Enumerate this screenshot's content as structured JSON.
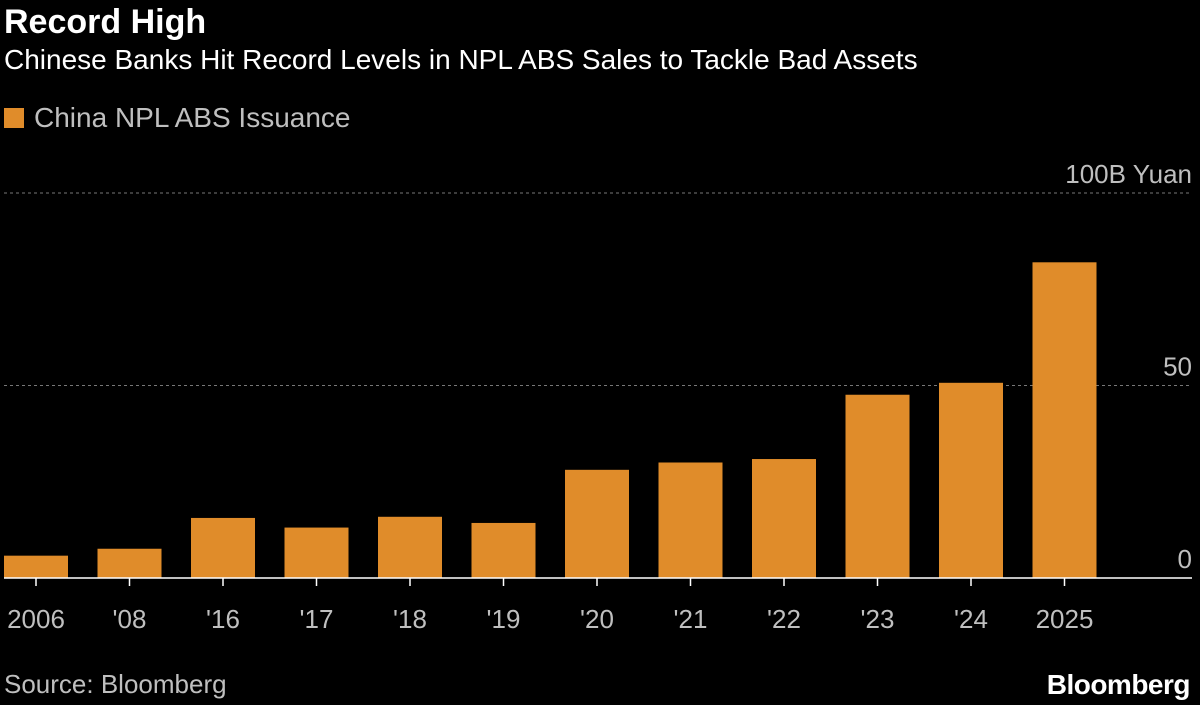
{
  "header": {
    "title": "Record High",
    "subtitle": "Chinese Banks Hit Record Levels in NPL ABS Sales to Tackle Bad Assets"
  },
  "footer": {
    "source": "Source: Bloomberg",
    "brand": "Bloomberg"
  },
  "colors": {
    "bar": "#E08C2A",
    "grid": "#777777",
    "axis": "#ffffff",
    "tick_label": "#bfbfbf"
  },
  "chart_data": {
    "type": "bar",
    "title": "Record High",
    "subtitle": "Chinese Banks Hit Record Levels in NPL ABS Sales to Tackle Bad Assets",
    "xlabel": "",
    "ylabel": "",
    "legend": [
      {
        "name": "China NPL ABS Issuance",
        "color": "#E08C2A"
      }
    ],
    "legend_position": "top-left",
    "unit_label": "100B Yuan",
    "categories": [
      "2006",
      "'08",
      "'16",
      "'17",
      "'18",
      "'19",
      "'20",
      "'21",
      "'22",
      "'23",
      "'24",
      "2025"
    ],
    "series": [
      {
        "name": "China NPL ABS Issuance",
        "values": [
          5.8,
          7.6,
          15.6,
          13.1,
          15.9,
          14.3,
          28.1,
          30.0,
          30.9,
          47.6,
          50.7,
          82.0
        ]
      }
    ],
    "ylim": [
      0,
      100
    ],
    "yticks": [
      {
        "value": 0,
        "label": "0"
      },
      {
        "value": 50,
        "label": "50"
      },
      {
        "value": 100,
        "label": "100B Yuan"
      }
    ],
    "grid": true
  }
}
